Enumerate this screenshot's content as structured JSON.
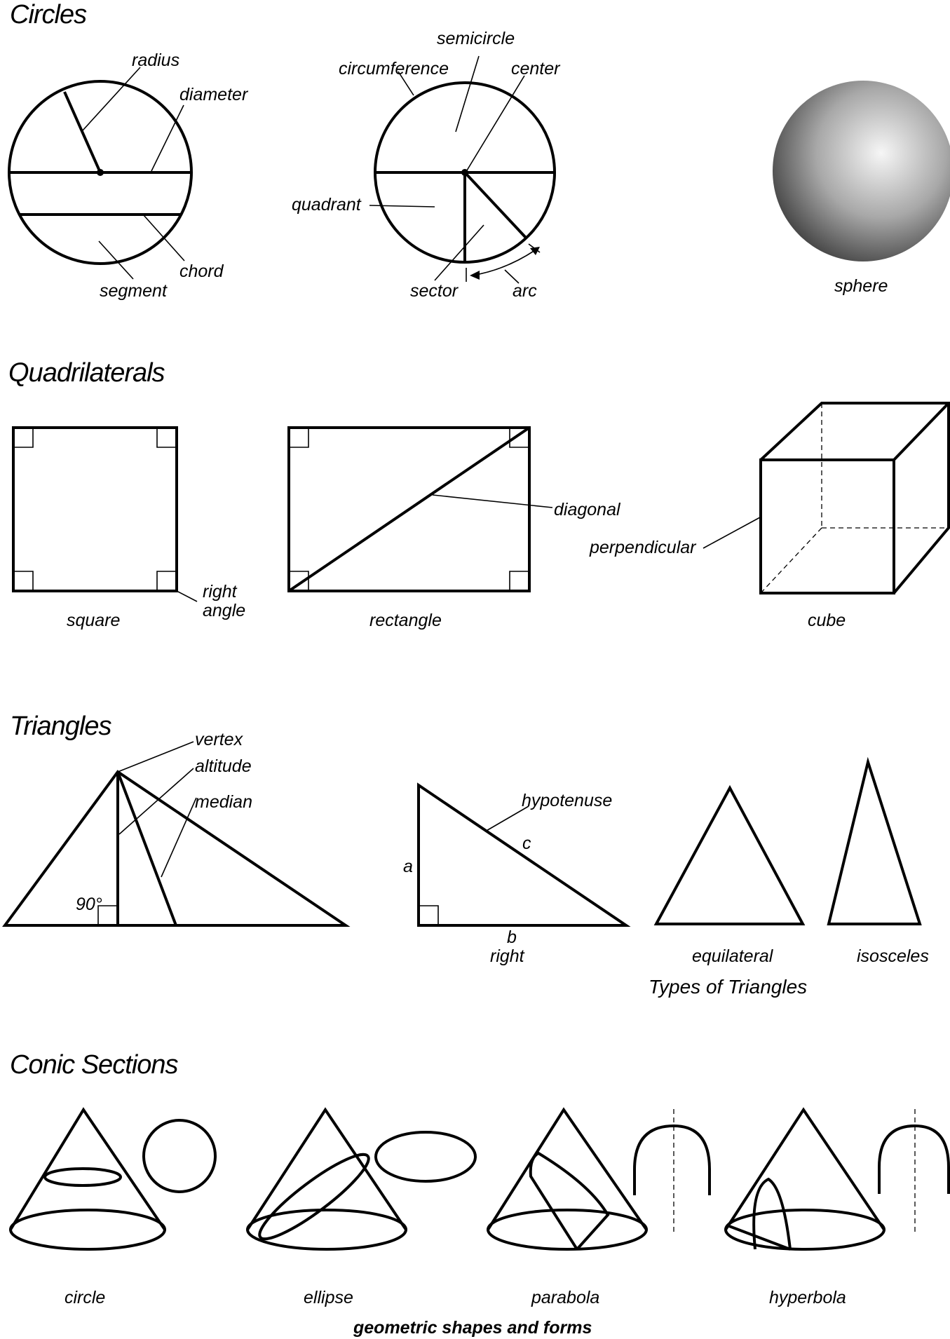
{
  "sections": {
    "circles": {
      "heading": "Circles",
      "labels": {
        "radius": "radius",
        "diameter": "diameter",
        "chord": "chord",
        "segment": "segment",
        "semicircle": "semicircle",
        "circumference": "circumference",
        "center": "center",
        "quadrant": "quadrant",
        "sector": "sector",
        "arc": "arc",
        "sphere": "sphere"
      }
    },
    "quadrilaterals": {
      "heading": "Quadrilaterals",
      "labels": {
        "right_line1": "right",
        "right_line2": "angle",
        "square": "square",
        "rectangle": "rectangle",
        "diagonal": "diagonal",
        "perpendicular": "perpendicular",
        "cube": "cube"
      }
    },
    "triangles": {
      "heading": "Triangles",
      "labels": {
        "vertex": "vertex",
        "altitude": "altitude",
        "median": "median",
        "ninety": "90°",
        "hypotenuse": "hypotenuse",
        "side_a": "a",
        "side_b": "b",
        "side_c": "c",
        "right": "right",
        "equilateral": "equilateral",
        "isosceles": "isosceles",
        "types": "Types of Triangles"
      }
    },
    "conics": {
      "heading": "Conic Sections",
      "labels": {
        "circle": "circle",
        "ellipse": "ellipse",
        "parabola": "parabola",
        "hyperbola": "hyperbola"
      }
    }
  },
  "footer": {
    "title": "geometric shapes and forms"
  },
  "colors": {
    "ink": "#000000",
    "paper": "#ffffff",
    "sphere_light": "#f4f4f4",
    "sphere_dark": "#4a4a4a"
  }
}
